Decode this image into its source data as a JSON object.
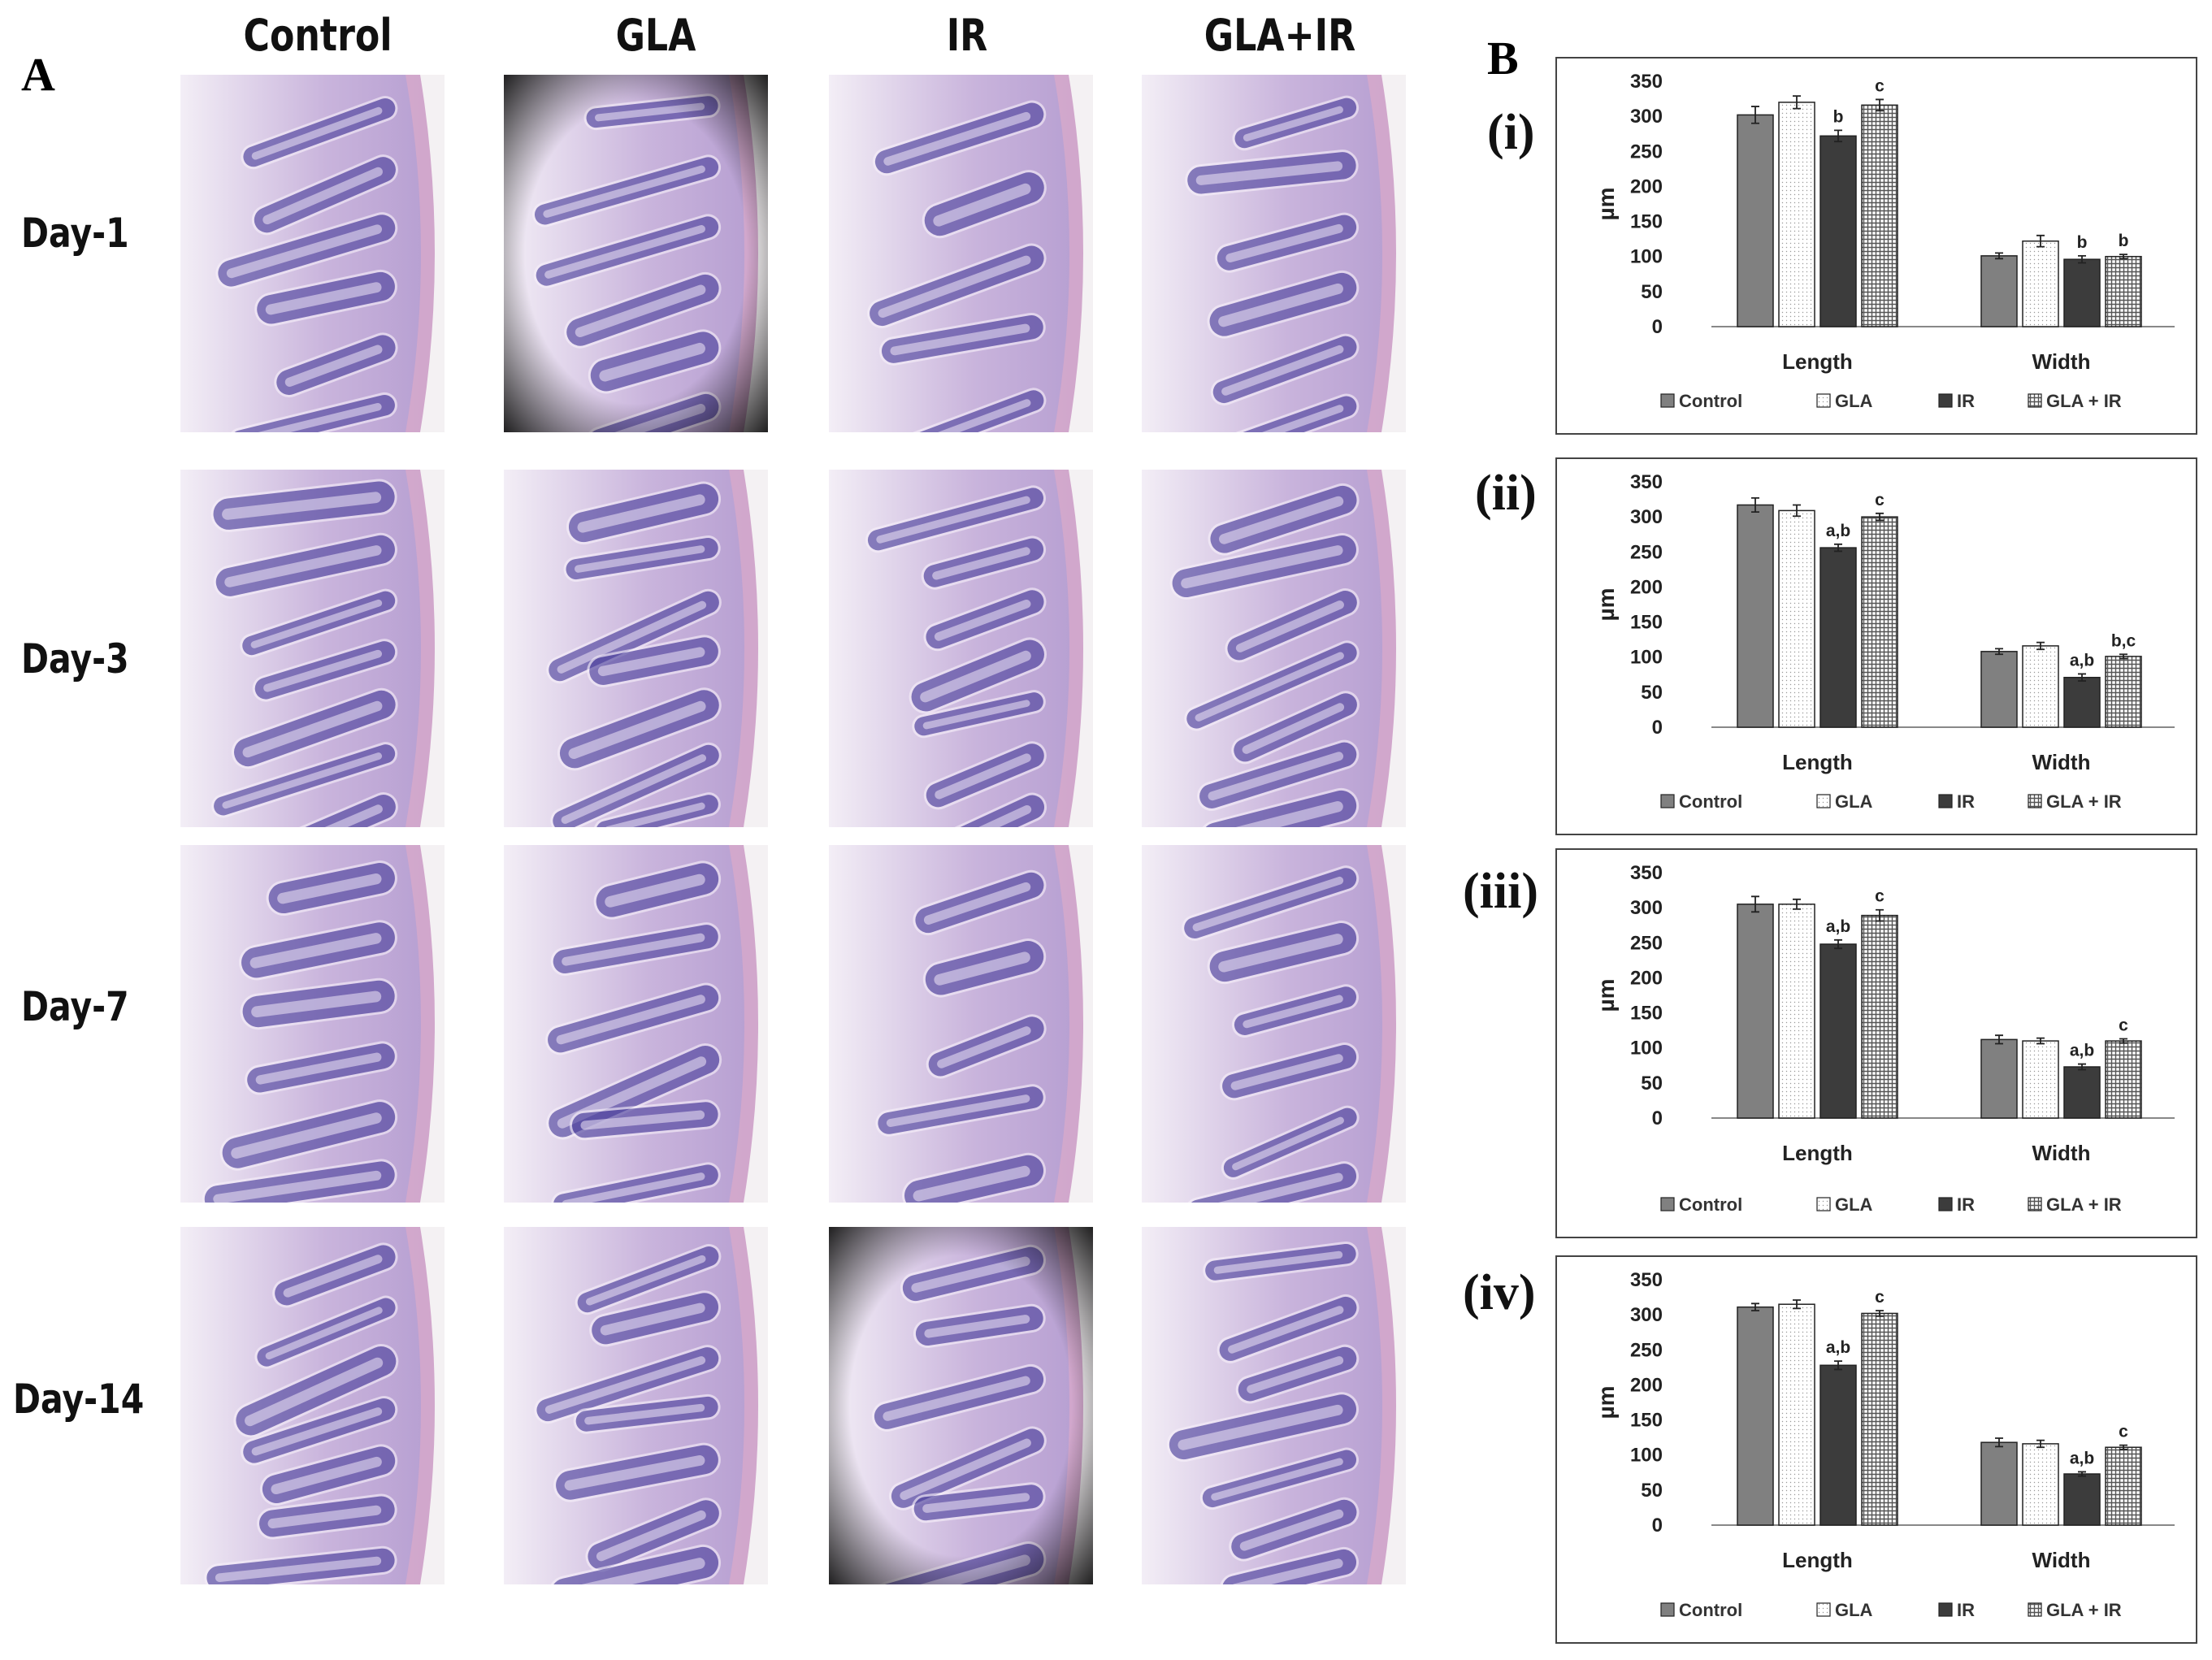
{
  "panel_a_label": "A",
  "panel_b_label": "B",
  "column_headers": [
    "Control",
    "GLA",
    "IR",
    "GLA+IR"
  ],
  "row_headers": [
    "Day-1",
    "Day-3",
    "Day-7",
    "Day-14"
  ],
  "colors": {
    "control": "#808080",
    "gla": "#ffffff",
    "ir": "#3c3c3c",
    "gla_ir": "#a8a8a8",
    "stain_dark": "#4a3f9c",
    "stain_light": "#c9b4dc"
  },
  "legend": [
    "Control",
    "GLA",
    "IR",
    "GLA + IR"
  ],
  "chart_data": [
    {
      "panel": "(i)",
      "type": "bar",
      "categories": [
        "Length",
        "Width"
      ],
      "ylabel": "µm",
      "ylim": [
        0,
        350
      ],
      "yticks": [
        "0",
        "50",
        "100",
        "150",
        "200",
        "250",
        "300",
        "350"
      ],
      "series": [
        {
          "name": "Control",
          "values": [
            302,
            101
          ],
          "err": [
            12,
            4
          ]
        },
        {
          "name": "GLA",
          "values": [
            320,
            122
          ],
          "err": [
            9,
            8
          ]
        },
        {
          "name": "IR",
          "values": [
            272,
            96
          ],
          "err": [
            8,
            5
          ]
        },
        {
          "name": "GLA + IR",
          "values": [
            316,
            100
          ],
          "err": [
            8,
            3
          ]
        }
      ],
      "annotations": [
        [
          "",
          "",
          "b",
          "c"
        ],
        [
          "",
          "",
          "b",
          "b"
        ]
      ]
    },
    {
      "panel": "(ii)",
      "type": "bar",
      "categories": [
        "Length",
        "Width"
      ],
      "ylabel": "µm",
      "ylim": [
        0,
        350
      ],
      "yticks": [
        "0",
        "50",
        "100",
        "150",
        "200",
        "250",
        "300",
        "350"
      ],
      "series": [
        {
          "name": "Control",
          "values": [
            317,
            108
          ],
          "err": [
            10,
            4
          ]
        },
        {
          "name": "GLA",
          "values": [
            309,
            116
          ],
          "err": [
            8,
            5
          ]
        },
        {
          "name": "IR",
          "values": [
            256,
            71
          ],
          "err": [
            5,
            5
          ]
        },
        {
          "name": "GLA + IR",
          "values": [
            300,
            101
          ],
          "err": [
            5,
            3
          ]
        }
      ],
      "annotations": [
        [
          "",
          "",
          "a,b",
          "c"
        ],
        [
          "",
          "",
          "a,b",
          "b,c"
        ]
      ]
    },
    {
      "panel": "(iii)",
      "type": "bar",
      "categories": [
        "Length",
        "Width"
      ],
      "ylabel": "µm",
      "ylim": [
        0,
        350
      ],
      "yticks": [
        "0",
        "50",
        "100",
        "150",
        "200",
        "250",
        "300",
        "350"
      ],
      "series": [
        {
          "name": "Control",
          "values": [
            305,
            112
          ],
          "err": [
            11,
            6
          ]
        },
        {
          "name": "GLA",
          "values": [
            305,
            110
          ],
          "err": [
            7,
            4
          ]
        },
        {
          "name": "IR",
          "values": [
            248,
            73
          ],
          "err": [
            6,
            4
          ]
        },
        {
          "name": "GLA + IR",
          "values": [
            289,
            110
          ],
          "err": [
            8,
            3
          ]
        }
      ],
      "annotations": [
        [
          "",
          "",
          "a,b",
          "c"
        ],
        [
          "",
          "",
          "a,b",
          "c"
        ]
      ]
    },
    {
      "panel": "(iv)",
      "type": "bar",
      "categories": [
        "Length",
        "Width"
      ],
      "ylabel": "µm",
      "ylim": [
        0,
        350
      ],
      "yticks": [
        "0",
        "50",
        "100",
        "150",
        "200",
        "250",
        "300",
        "350"
      ],
      "series": [
        {
          "name": "Control",
          "values": [
            311,
            118
          ],
          "err": [
            5,
            6
          ]
        },
        {
          "name": "GLA",
          "values": [
            315,
            116
          ],
          "err": [
            6,
            5
          ]
        },
        {
          "name": "IR",
          "values": [
            228,
            73
          ],
          "err": [
            6,
            3
          ]
        },
        {
          "name": "GLA + IR",
          "values": [
            302,
            111
          ],
          "err": [
            4,
            3
          ]
        }
      ],
      "annotations": [
        [
          "",
          "",
          "a,b",
          "c"
        ],
        [
          "",
          "",
          "a,b",
          "c"
        ]
      ]
    }
  ]
}
